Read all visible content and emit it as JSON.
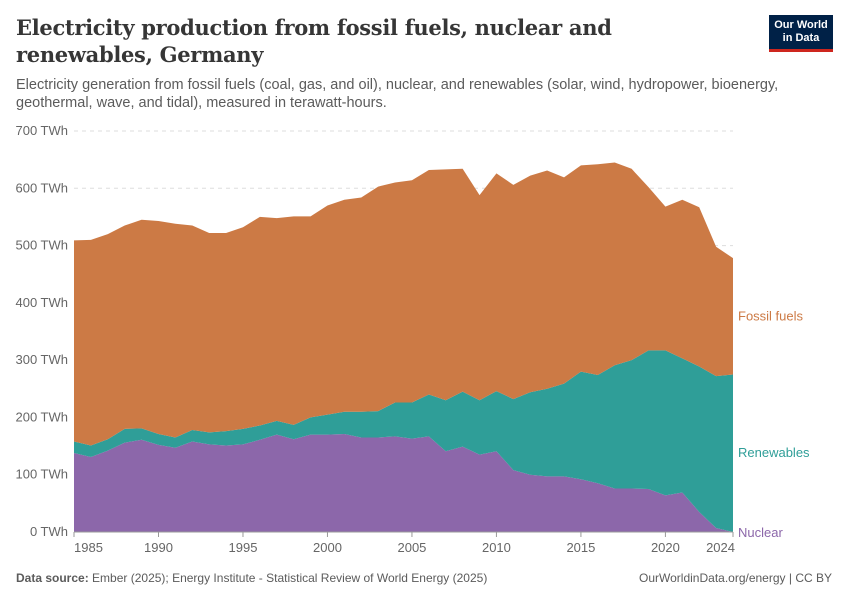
{
  "header": {
    "title": "Electricity production from fossil fuels, nuclear and renewables, Germany",
    "subtitle": "Electricity generation from fossil fuels (coal, gas, and oil), nuclear, and renewables (solar, wind, hydropower, bioenergy, geothermal, wave, and tidal), measured in terawatt-hours.",
    "logo": "Our World in Data"
  },
  "footer": {
    "source_label": "Data source:",
    "source": "Ember (2025); Energy Institute - Statistical Review of World Energy (2025)",
    "credit": "OurWorldinData.org/energy | CC BY"
  },
  "chart_data": {
    "type": "area",
    "stacked": true,
    "title": "Electricity production from fossil fuels, nuclear and renewables, Germany",
    "ylabel": "",
    "xlabel": "",
    "ylim": [
      0,
      700
    ],
    "xlim": [
      1985,
      2024
    ],
    "yticks": [
      0,
      100,
      200,
      300,
      400,
      500,
      600,
      700
    ],
    "ytick_unit": " TWh",
    "xticks": [
      1985,
      1990,
      1995,
      2000,
      2005,
      2010,
      2015,
      2020,
      2024
    ],
    "grid": "horizontal dashed",
    "legend": "right, inline labels",
    "x": [
      1985,
      1986,
      1987,
      1988,
      1989,
      1990,
      1991,
      1992,
      1993,
      1994,
      1995,
      1996,
      1997,
      1998,
      1999,
      2000,
      2001,
      2002,
      2003,
      2004,
      2005,
      2006,
      2007,
      2008,
      2009,
      2010,
      2011,
      2012,
      2013,
      2014,
      2015,
      2016,
      2017,
      2018,
      2019,
      2020,
      2021,
      2022,
      2023,
      2024
    ],
    "series": [
      {
        "name": "Nuclear",
        "color": "#8c67aa",
        "values": [
          138,
          131,
          142,
          156,
          161,
          152,
          147,
          158,
          153,
          151,
          153,
          161,
          170,
          162,
          170,
          170,
          171,
          165,
          165,
          167,
          163,
          167,
          141,
          149,
          135,
          141,
          108,
          100,
          97,
          97,
          92,
          85,
          76,
          76,
          75,
          64,
          69,
          35,
          7,
          0
        ]
      },
      {
        "name": "Renewables",
        "color": "#2f9e98",
        "values": [
          20,
          20,
          20,
          24,
          20,
          19,
          18,
          20,
          21,
          25,
          27,
          25,
          24,
          25,
          30,
          35,
          39,
          45,
          46,
          59,
          63,
          73,
          89,
          96,
          95,
          105,
          124,
          144,
          153,
          162,
          188,
          189,
          215,
          224,
          242,
          253,
          234,
          254,
          265,
          275
        ]
      },
      {
        "name": "Fossil fuels",
        "color": "#cc7a45",
        "values": [
          351,
          359,
          358,
          355,
          364,
          372,
          373,
          357,
          348,
          346,
          352,
          364,
          354,
          364,
          351,
          365,
          370,
          374,
          392,
          384,
          388,
          392,
          403,
          389,
          358,
          380,
          374,
          378,
          381,
          360,
          360,
          368,
          354,
          334,
          285,
          251,
          277,
          278,
          226,
          203
        ]
      }
    ]
  }
}
